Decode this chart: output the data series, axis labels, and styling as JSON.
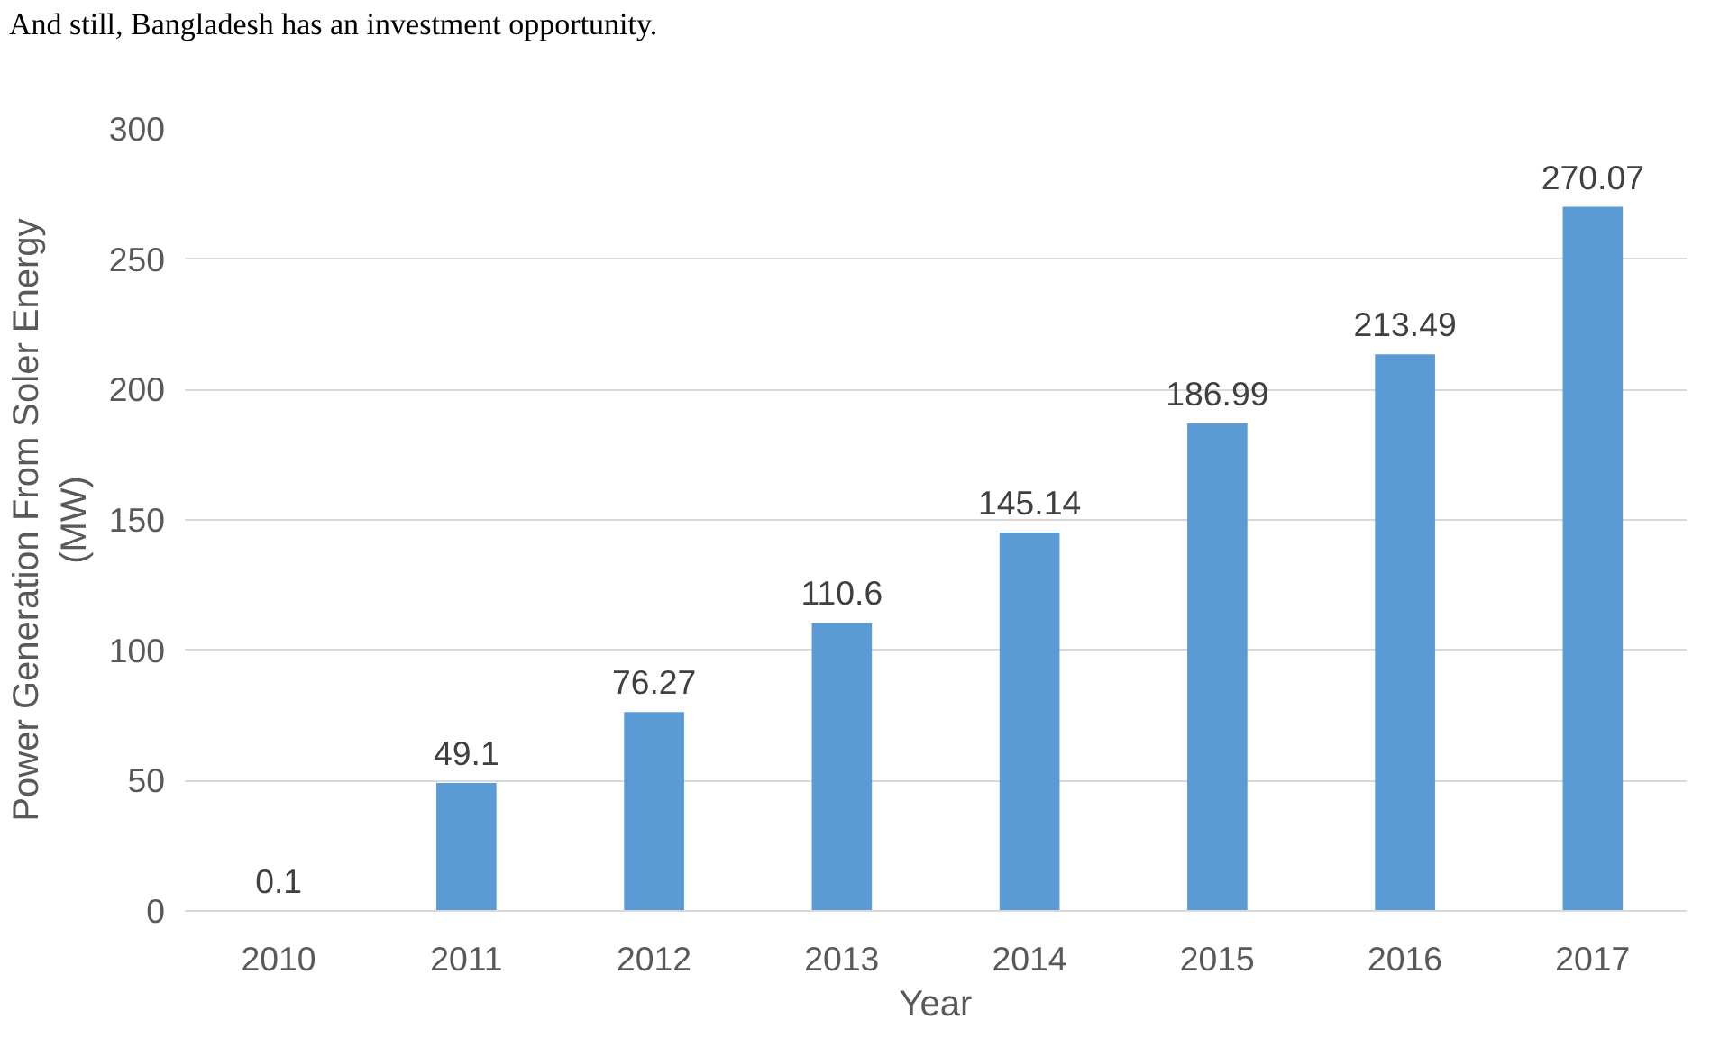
{
  "chart_data": {
    "type": "bar",
    "annotations": [
      "And still, Bangladesh has an investment opportunity."
    ],
    "xlabel": "Year",
    "ylabel": "Power Generation From Soler Energy\n(MW)",
    "categories": [
      "2010",
      "2011",
      "2012",
      "2013",
      "2014",
      "2015",
      "2016",
      "2017"
    ],
    "values": [
      0.1,
      49.1,
      76.27,
      110.6,
      145.14,
      186.99,
      213.49,
      270.07
    ],
    "color": "#5b9bd5",
    "ylim": [
      0,
      300
    ],
    "yticks": [
      0,
      50,
      100,
      150,
      200,
      250,
      300
    ],
    "grid": "y",
    "data_labels": true
  }
}
